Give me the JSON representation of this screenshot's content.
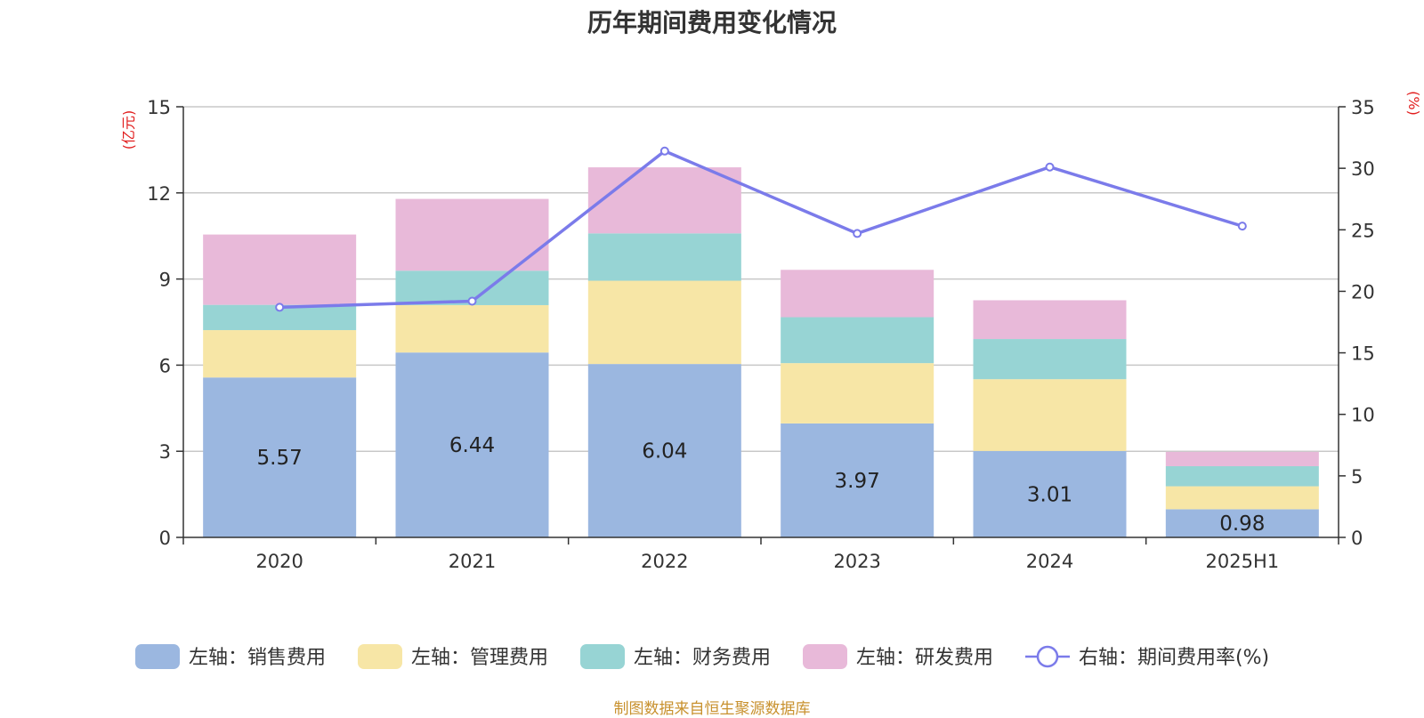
{
  "source": "制图数据来自恒生聚源数据库",
  "chart_data": {
    "type": "bar",
    "title": "历年期间费用变化情况",
    "categories": [
      "2020",
      "2021",
      "2022",
      "2023",
      "2024",
      "2025H1"
    ],
    "left_axis": {
      "unit": "(亿元)",
      "ylim": [
        0,
        15
      ],
      "ticks": [
        0,
        3,
        6,
        9,
        12,
        15
      ]
    },
    "right_axis": {
      "unit": "(%)",
      "ylim": [
        0,
        35
      ],
      "ticks": [
        0,
        5,
        10,
        15,
        20,
        25,
        30,
        35
      ]
    },
    "grid": true,
    "legend_position": "bottom",
    "series": [
      {
        "name": "左轴：销售费用",
        "type": "bar",
        "axis": "left",
        "color": "#9bb7e0",
        "values": [
          5.57,
          6.44,
          6.04,
          3.97,
          3.01,
          0.98
        ],
        "show_labels": true
      },
      {
        "name": "左轴：管理费用",
        "type": "bar",
        "axis": "left",
        "color": "#f7e6a6",
        "values": [
          1.65,
          1.65,
          2.9,
          2.1,
          2.5,
          0.8
        ],
        "show_labels": false
      },
      {
        "name": "左轴：财务费用",
        "type": "bar",
        "axis": "left",
        "color": "#97d4d4",
        "values": [
          0.88,
          1.2,
          1.65,
          1.6,
          1.4,
          0.7
        ],
        "show_labels": false
      },
      {
        "name": "左轴：研发费用",
        "type": "bar",
        "axis": "left",
        "color": "#e8b9d9",
        "values": [
          2.45,
          2.5,
          2.3,
          1.65,
          1.35,
          0.5
        ],
        "show_labels": false
      },
      {
        "name": "右轴：期间费用率(%)",
        "type": "line",
        "axis": "right",
        "color": "#7b7bea",
        "values": [
          18.7,
          19.2,
          31.4,
          24.7,
          30.1,
          25.3
        ],
        "show_labels": false
      }
    ]
  }
}
